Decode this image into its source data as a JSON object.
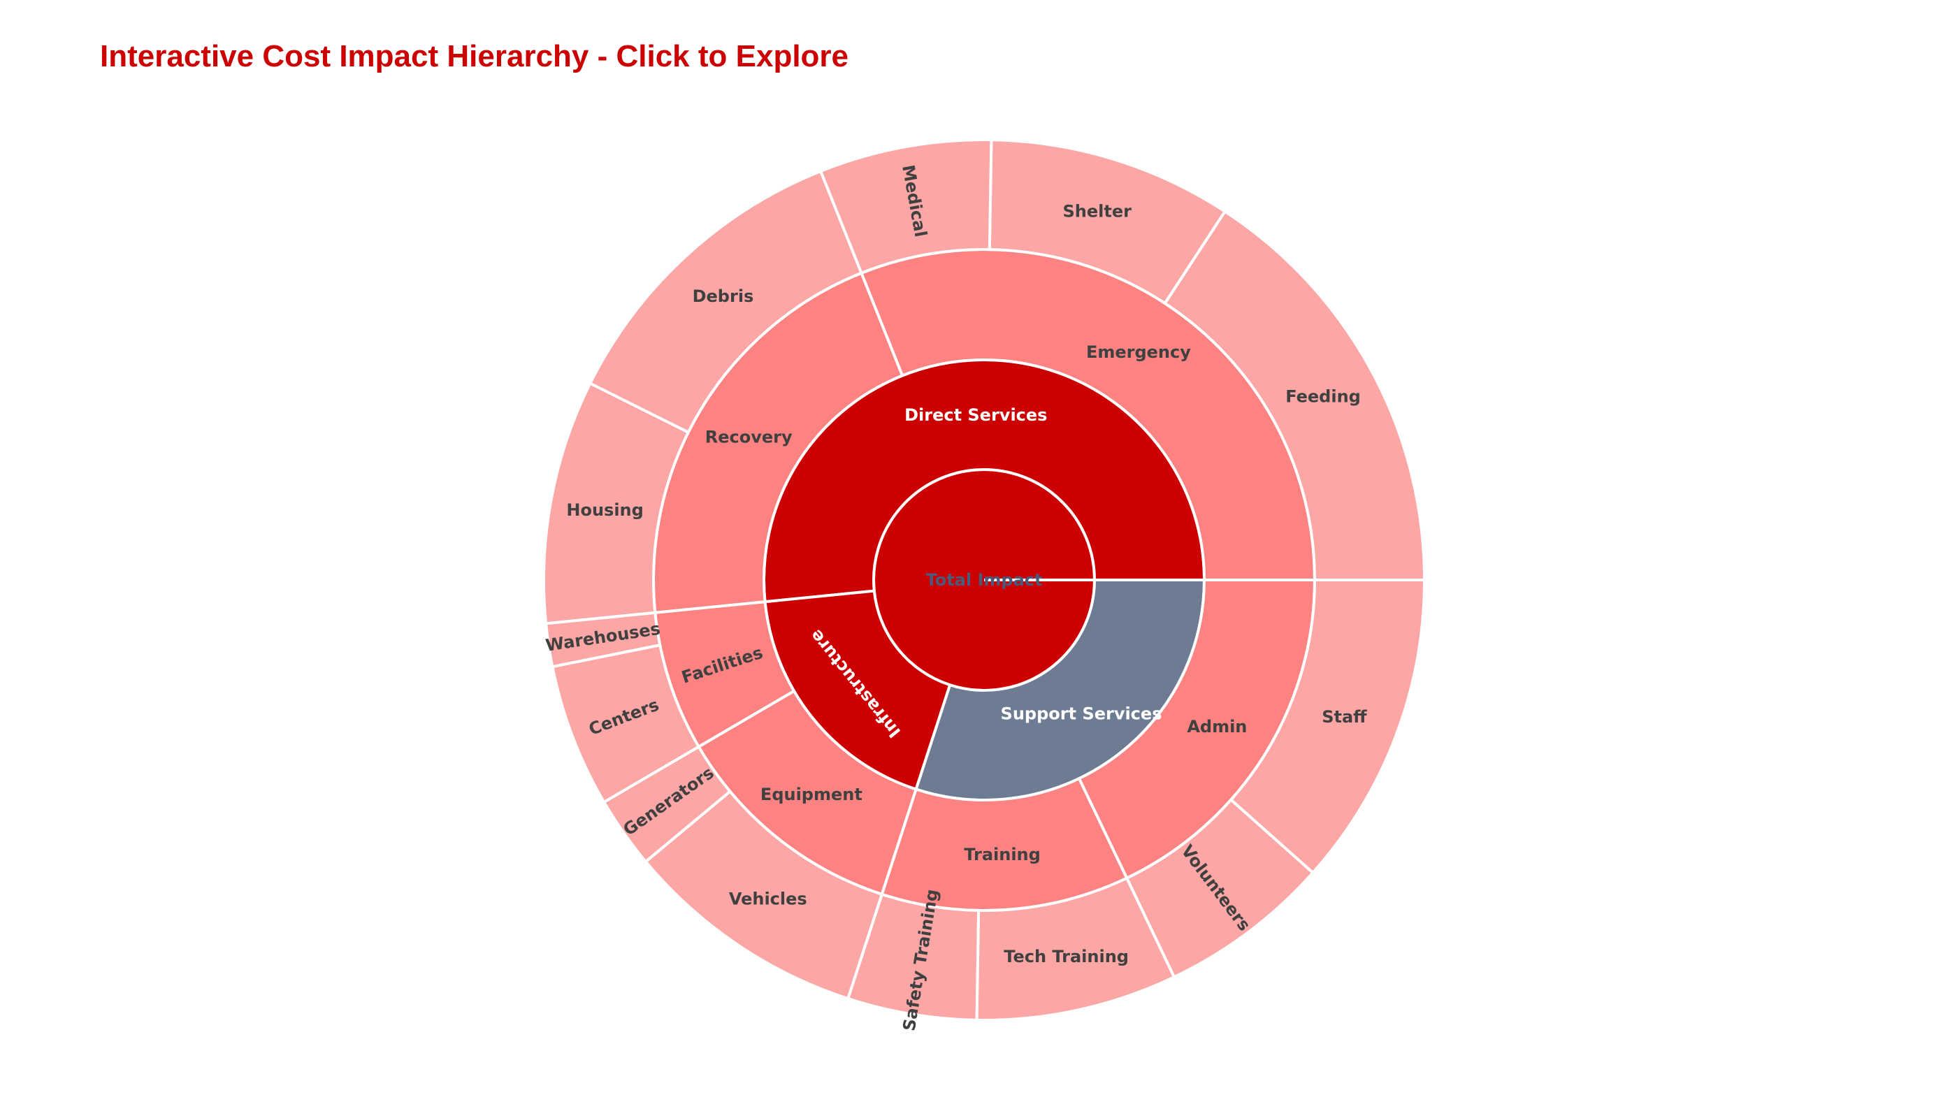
{
  "title": "Interactive Cost Impact Hierarchy - Click to Explore",
  "chart_data": {
    "type": "sunburst",
    "colors": {
      "root": "#cc0000",
      "level1_primary": "#cc0000",
      "level1_secondary": "#6e7c93",
      "level2": "#fc8381",
      "level3": "#fca7a6",
      "border": "#ffffff"
    },
    "root": {
      "name": "Total Impact",
      "children": [
        {
          "name": "Direct Services",
          "color": "#cc0000",
          "children": [
            {
              "name": "Emergency",
              "children": [
                {
                  "name": "Feeding",
                  "value": 30
                },
                {
                  "name": "Shelter",
                  "value": 17
                },
                {
                  "name": "Medical",
                  "value": 12
                }
              ]
            },
            {
              "name": "Recovery",
              "children": [
                {
                  "name": "Debris",
                  "value": 22
                },
                {
                  "name": "Housing",
                  "value": 17
                }
              ]
            }
          ]
        },
        {
          "name": "Infrastructure",
          "color": "#cc0000",
          "children": [
            {
              "name": "Facilities",
              "children": [
                {
                  "name": "Warehouses",
                  "value": 3
                },
                {
                  "name": "Centers",
                  "value": 10
                }
              ]
            },
            {
              "name": "Equipment",
              "children": [
                {
                  "name": "Generators",
                  "value": 5
                },
                {
                  "name": "Vehicles",
                  "value": 17
                }
              ]
            }
          ]
        },
        {
          "name": "Support Services",
          "color": "#6e7c93",
          "children": [
            {
              "name": "Training",
              "children": [
                {
                  "name": "Safety Training",
                  "value": 9
                },
                {
                  "name": "Tech Training",
                  "value": 14
                }
              ]
            },
            {
              "name": "Admin",
              "children": [
                {
                  "name": "Volunteers",
                  "value": 12
                },
                {
                  "name": "Staff",
                  "value": 22
                }
              ]
            }
          ]
        }
      ]
    }
  }
}
